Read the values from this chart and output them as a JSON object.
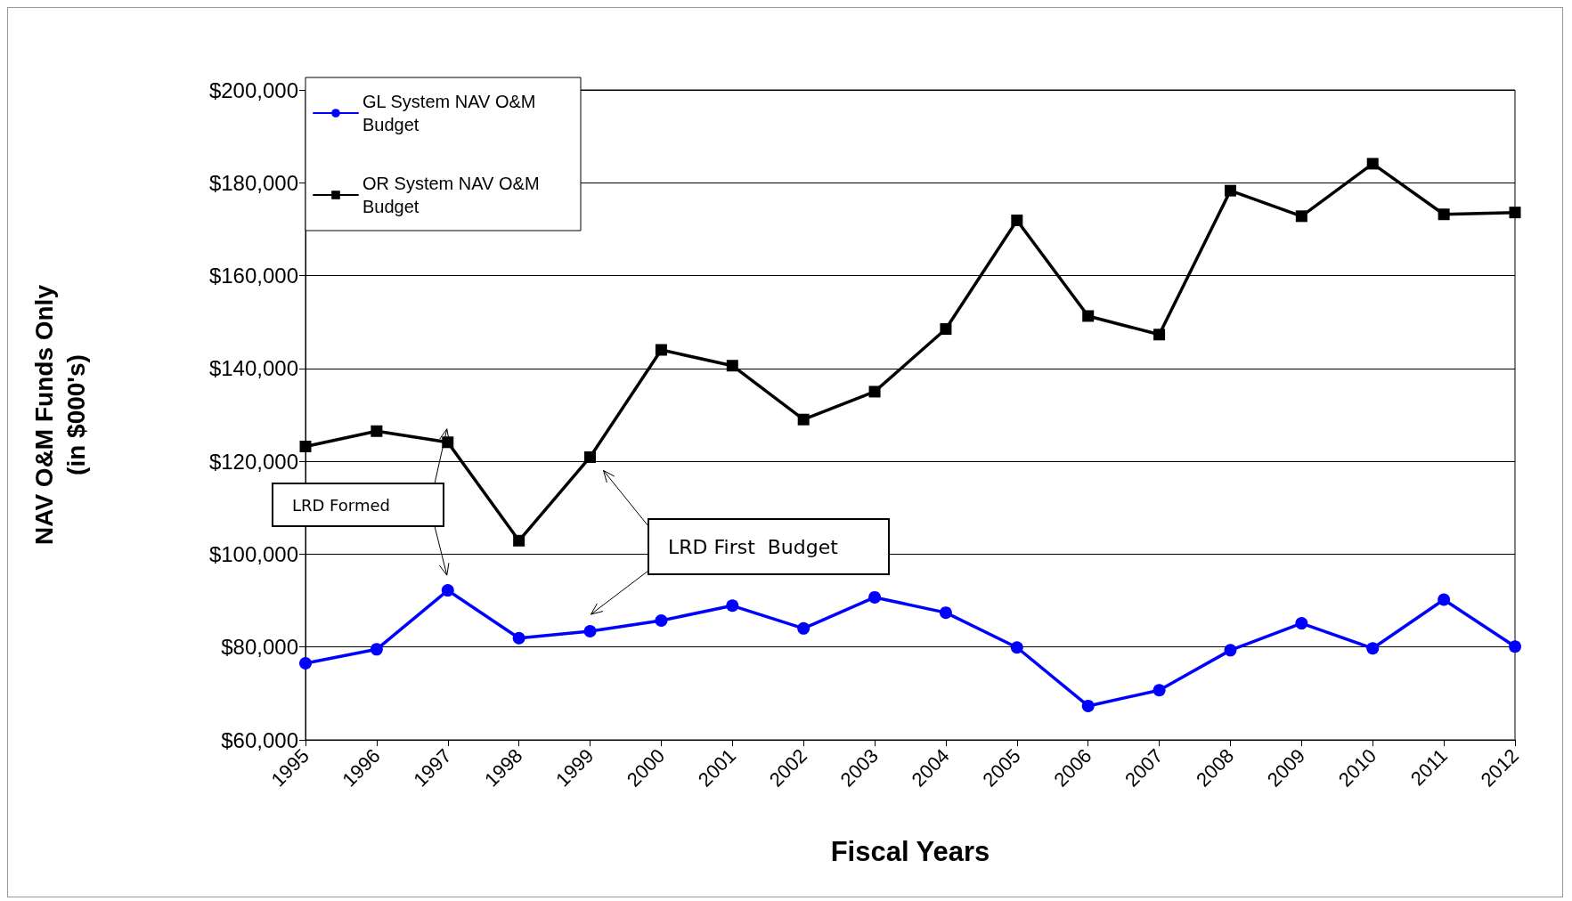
{
  "chart_data": {
    "type": "line",
    "xlabel": "Fiscal Years",
    "ylabel": "NAV O&M Funds Only\n(in $000's)",
    "categories": [
      "1995",
      "1996",
      "1997",
      "1998",
      "1999",
      "2000",
      "2001",
      "2002",
      "2003",
      "2004",
      "2005",
      "2006",
      "2007",
      "2008",
      "2009",
      "2010",
      "2011",
      "2012"
    ],
    "series": [
      {
        "name": "GL System NAV O&M Budget",
        "color": "#0000ff",
        "marker": "circle",
        "values": [
          76500,
          79500,
          92200,
          81900,
          83400,
          85700,
          88900,
          84000,
          90700,
          87400,
          79900,
          67300,
          70700,
          79300,
          85100,
          79700,
          90200,
          80100
        ]
      },
      {
        "name": "OR System NAV O&M Budget",
        "color": "#000000",
        "marker": "square",
        "values": [
          123200,
          126500,
          124100,
          102900,
          120900,
          144000,
          140600,
          129000,
          135000,
          148500,
          171900,
          151300,
          147300,
          178300,
          172800,
          184100,
          173200,
          173600
        ]
      }
    ],
    "ylim": [
      60000,
      200000
    ],
    "yticks": [
      {
        "value": 60000,
        "label": "$60,000"
      },
      {
        "value": 80000,
        "label": "$80,000"
      },
      {
        "value": 100000,
        "label": "$100,000"
      },
      {
        "value": 120000,
        "label": "$120,000"
      },
      {
        "value": 140000,
        "label": "$140,000"
      },
      {
        "value": 160000,
        "label": "$160,000"
      },
      {
        "value": 180000,
        "label": "$180,000"
      },
      {
        "value": 200000,
        "label": "$200,000"
      }
    ],
    "grid": "y",
    "legend": "top left",
    "line_style": "solid",
    "annotations": [
      "LRD Formed",
      "LRD First  Budget"
    ]
  }
}
